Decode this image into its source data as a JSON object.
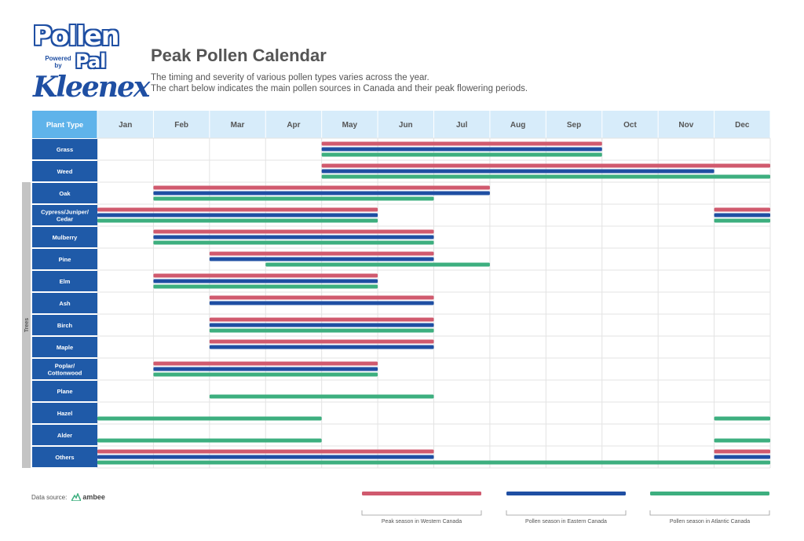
{
  "logo": {
    "line1": "Pollen",
    "line2": "Powered by",
    "line3": "Pal",
    "line4": "Kleenex"
  },
  "title": "Peak Pollen Calendar",
  "subtitle_line1": "The timing and severity of various pollen types varies across the year.",
  "subtitle_line2": "The chart below indicates the main pollen sources in Canada and their peak flowering periods.",
  "header_label": "Plant Type",
  "group_label": "Trees",
  "data_source_label": "Data source:",
  "data_source_name": "ambee",
  "colors": {
    "west": "#d05a6e",
    "east": "#1f4fa3",
    "atlantic": "#3daf7f",
    "header_bg": "#d7ecfa",
    "plant_bg": "#1f5aa8",
    "grid": "#e3e3e3",
    "group_bar": "#c4c4c4"
  },
  "chart_data": {
    "type": "gantt",
    "months": [
      "Jan",
      "Feb",
      "Mar",
      "Apr",
      "May",
      "Jun",
      "Jul",
      "Aug",
      "Sep",
      "Oct",
      "Nov",
      "Dec"
    ],
    "series": [
      {
        "key": "west",
        "name": "Peak season in Western Canada"
      },
      {
        "key": "east",
        "name": "Pollen season in Eastern Canada"
      },
      {
        "key": "atlantic",
        "name": "Pollen season in Atlantic Canada"
      }
    ],
    "rows": [
      {
        "plant": [
          "Grass"
        ],
        "west": [
          [
            5,
            9
          ]
        ],
        "east": [
          [
            5,
            9
          ]
        ],
        "atlantic": [
          [
            5,
            9
          ]
        ]
      },
      {
        "plant": [
          "Weed"
        ],
        "west": [
          [
            5,
            12
          ]
        ],
        "east": [
          [
            5,
            11
          ]
        ],
        "atlantic": [
          [
            5,
            12
          ]
        ]
      },
      {
        "plant": [
          "Oak"
        ],
        "west": [
          [
            2,
            7
          ]
        ],
        "east": [
          [
            2,
            7
          ]
        ],
        "atlantic": [
          [
            2,
            6
          ]
        ]
      },
      {
        "plant": [
          "Cypress/Juniper/",
          "Cedar"
        ],
        "west": [
          [
            1,
            5
          ],
          [
            12,
            12
          ]
        ],
        "east": [
          [
            1,
            5
          ],
          [
            12,
            12
          ]
        ],
        "atlantic": [
          [
            1,
            5
          ],
          [
            12,
            12
          ]
        ]
      },
      {
        "plant": [
          "Mulberry"
        ],
        "west": [
          [
            2,
            6
          ]
        ],
        "east": [
          [
            2,
            6
          ]
        ],
        "atlantic": [
          [
            2,
            6
          ]
        ]
      },
      {
        "plant": [
          "Pine"
        ],
        "west": [
          [
            3,
            6
          ]
        ],
        "east": [
          [
            3,
            6
          ]
        ],
        "atlantic": [
          [
            4,
            7
          ]
        ]
      },
      {
        "plant": [
          "Elm"
        ],
        "west": [
          [
            2,
            5
          ]
        ],
        "east": [
          [
            2,
            5
          ]
        ],
        "atlantic": [
          [
            2,
            5
          ]
        ]
      },
      {
        "plant": [
          "Ash"
        ],
        "west": [
          [
            3,
            6
          ]
        ],
        "east": [
          [
            3,
            6
          ]
        ],
        "atlantic": []
      },
      {
        "plant": [
          "Birch"
        ],
        "west": [
          [
            3,
            6
          ]
        ],
        "east": [
          [
            3,
            6
          ]
        ],
        "atlantic": [
          [
            3,
            6
          ]
        ]
      },
      {
        "plant": [
          "Maple"
        ],
        "west": [
          [
            3,
            6
          ]
        ],
        "east": [
          [
            3,
            6
          ]
        ],
        "atlantic": []
      },
      {
        "plant": [
          "Poplar/",
          "Cottonwood"
        ],
        "west": [
          [
            2,
            5
          ]
        ],
        "east": [
          [
            2,
            5
          ]
        ],
        "atlantic": [
          [
            2,
            5
          ]
        ]
      },
      {
        "plant": [
          "Plane"
        ],
        "west": [],
        "east": [],
        "atlantic": [
          [
            3,
            6
          ]
        ]
      },
      {
        "plant": [
          "Hazel"
        ],
        "west": [],
        "east": [],
        "atlantic": [
          [
            1,
            4
          ],
          [
            12,
            12
          ]
        ]
      },
      {
        "plant": [
          "Alder"
        ],
        "west": [],
        "east": [],
        "atlantic": [
          [
            1,
            4
          ],
          [
            12,
            12
          ]
        ]
      },
      {
        "plant": [
          "Others"
        ],
        "west": [
          [
            1,
            6
          ],
          [
            12,
            12
          ]
        ],
        "east": [
          [
            1,
            6
          ],
          [
            12,
            12
          ]
        ],
        "atlantic": [
          [
            1,
            12
          ]
        ]
      }
    ],
    "trees_group": {
      "first_row": 2,
      "last_row": 14
    }
  }
}
